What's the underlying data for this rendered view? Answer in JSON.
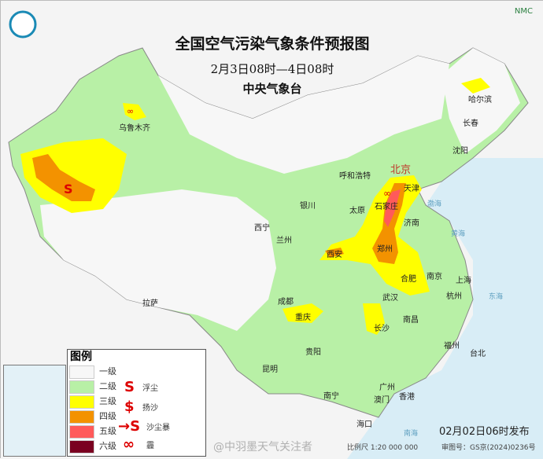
{
  "header": {
    "title": "全国空气污染气象条件预报图",
    "period": "2月3日08时—4日08时",
    "agency": "中央气象台",
    "brand": "NMC"
  },
  "colors": {
    "level1": "#f7f7f7",
    "level2": "#b8f0a6",
    "level3": "#ffff00",
    "level4": "#f39200",
    "level5": "#ff5a5a",
    "level6": "#7a0020",
    "sea": "#d8edf6",
    "symbol": "#d40000"
  },
  "cities": [
    {
      "name": "北京",
      "capital": true
    },
    {
      "name": "天津"
    },
    {
      "name": "石家庄"
    },
    {
      "name": "太原"
    },
    {
      "name": "呼和浩特"
    },
    {
      "name": "银川"
    },
    {
      "name": "西宁"
    },
    {
      "name": "兰州"
    },
    {
      "name": "济南"
    },
    {
      "name": "西安"
    },
    {
      "name": "郑州"
    },
    {
      "name": "合肥"
    },
    {
      "name": "南京"
    },
    {
      "name": "上海"
    },
    {
      "name": "杭州"
    },
    {
      "name": "武汉"
    },
    {
      "name": "成都"
    },
    {
      "name": "重庆"
    },
    {
      "name": "长沙"
    },
    {
      "name": "南昌"
    },
    {
      "name": "拉萨"
    },
    {
      "name": "贵阳"
    },
    {
      "name": "昆明"
    },
    {
      "name": "福州"
    },
    {
      "name": "台北"
    },
    {
      "name": "广州"
    },
    {
      "name": "澳门"
    },
    {
      "name": "香港"
    },
    {
      "name": "南宁"
    },
    {
      "name": "海口"
    },
    {
      "name": "乌鲁木齐"
    },
    {
      "name": "哈尔滨"
    },
    {
      "name": "长春"
    },
    {
      "name": "沈阳"
    }
  ],
  "seas": [
    "渤海",
    "黄海",
    "东海",
    "南海"
  ],
  "legend": {
    "title": "图例",
    "levels": [
      "一级",
      "二级",
      "三级",
      "四级",
      "五级",
      "六级"
    ],
    "symbols": [
      {
        "icon": "floating-dust-icon",
        "label": "浮尘"
      },
      {
        "icon": "blowing-sand-icon",
        "label": "扬沙"
      },
      {
        "icon": "sandstorm-icon",
        "label": "沙尘暴"
      },
      {
        "icon": "haze-icon",
        "label": "霾"
      }
    ]
  },
  "footer": {
    "issued": "02月02日06时发布",
    "scale": "比例尺 1:20 000 000",
    "review": "审图号：GS京(2024)0236号",
    "watermark": "@中羽墨天气关注者"
  }
}
